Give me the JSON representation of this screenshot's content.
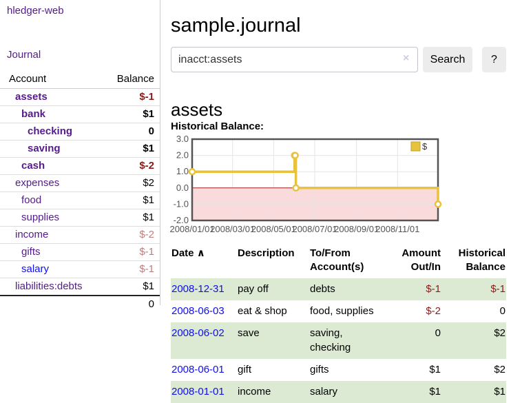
{
  "app": {
    "title": "hledger-web"
  },
  "sidebar": {
    "journal_label": "Journal",
    "headers": {
      "account": "Account",
      "balance": "Balance"
    },
    "rows": [
      {
        "account": "assets",
        "balance": "$-1",
        "depth": 1,
        "bold": true,
        "neg": "strong"
      },
      {
        "account": "bank",
        "balance": "$1",
        "depth": 2,
        "bold": true
      },
      {
        "account": "checking",
        "balance": "0",
        "depth": 3,
        "bold": true
      },
      {
        "account": "saving",
        "balance": "$1",
        "depth": 3,
        "bold": true
      },
      {
        "account": "cash",
        "balance": "$-2",
        "depth": 2,
        "bold": true,
        "neg": "strong"
      },
      {
        "account": "expenses",
        "balance": "$2",
        "depth": 1
      },
      {
        "account": "food",
        "balance": "$1",
        "depth": 2
      },
      {
        "account": "supplies",
        "balance": "$1",
        "depth": 2
      },
      {
        "account": "income",
        "balance": "$-2",
        "depth": 1,
        "neg": "soft"
      },
      {
        "account": "gifts",
        "balance": "$-1",
        "depth": 2,
        "neg": "soft"
      },
      {
        "account": "salary",
        "balance": "$-1",
        "depth": 2,
        "neg": "soft",
        "link_variant": "blue"
      },
      {
        "account": "liabilities:debts",
        "balance": "$1",
        "depth": 1
      }
    ],
    "total": "0"
  },
  "main": {
    "title": "sample.journal",
    "search": {
      "value": "inacct:assets",
      "clear_icon": "×",
      "button_label": "Search",
      "help_label": "?"
    },
    "heading": "assets",
    "chart_label": "Historical Balance:"
  },
  "chart_data": {
    "type": "line",
    "title": "Historical Balance",
    "series": [
      {
        "name": "$",
        "color": "#e9c23d",
        "step": true,
        "points": [
          [
            "2008-01-01",
            1
          ],
          [
            "2008-06-01",
            2
          ],
          [
            "2008-06-02",
            2
          ],
          [
            "2008-06-03",
            0
          ],
          [
            "2008-12-31",
            -1
          ]
        ]
      }
    ],
    "x_ticks": [
      "2008/01/01",
      "2008/03/01",
      "2008/05/01",
      "2008/07/01",
      "2008/09/01",
      "2008/11/01"
    ],
    "y_ticks": [
      3,
      2,
      1,
      0,
      -1,
      -2
    ],
    "xlim": [
      "2008-01-01",
      "2008-12-31"
    ],
    "ylim": [
      -2,
      3
    ],
    "grid": true,
    "legend_position": "top-right",
    "zero_line_color": "#9b1c1c",
    "negative_region_color": "#fadbdb"
  },
  "register": {
    "sort_icon": "∧",
    "headers": [
      "Date",
      "Description",
      "To/From Account(s)",
      "Amount Out/In",
      "Historical Balance"
    ],
    "rows": [
      {
        "date": "2008-12-31",
        "description": "pay off",
        "accounts": "debts",
        "amount": "$-1",
        "balance": "$-1",
        "amount_neg": true,
        "balance_neg": true
      },
      {
        "date": "2008-06-03",
        "description": "eat & shop",
        "accounts": "food, supplies",
        "amount": "$-2",
        "balance": "0",
        "amount_neg": true
      },
      {
        "date": "2008-06-02",
        "description": "save",
        "accounts": "saving, checking",
        "amount": "0",
        "balance": "$2"
      },
      {
        "date": "2008-06-01",
        "description": "gift",
        "accounts": "gifts",
        "amount": "$1",
        "balance": "$2"
      },
      {
        "date": "2008-01-01",
        "description": "income",
        "accounts": "salary",
        "amount": "$1",
        "balance": "$1"
      }
    ]
  }
}
